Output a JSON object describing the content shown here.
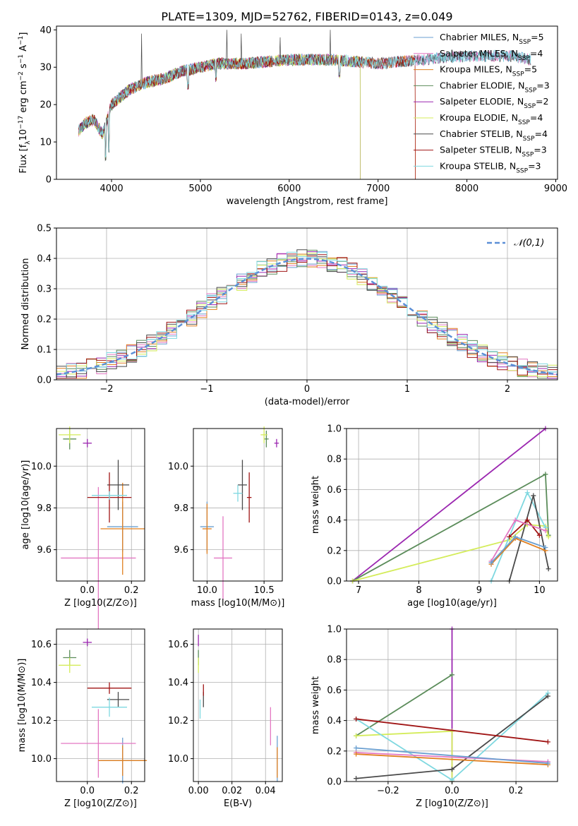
{
  "title": "PLATE=1309, MJD=52762, FIBERID=0143, z=0.049",
  "colors": {
    "c0": "#6a9fd0",
    "c1": "#e377c2",
    "c2": "#e07f1f",
    "c3": "#5b8c5a",
    "c4": "#9b27b0",
    "c5": "#d4ec5a",
    "c6": "#4a4a4a",
    "c7": "#a01515",
    "c8": "#7fd8e0",
    "normal": "#5b8fd6"
  },
  "chart_data": [
    {
      "id": "spectrum",
      "type": "line",
      "xlabel": "wavelength [Angstrom, rest frame]",
      "ylabel_parts": [
        "Flux [f",
        "λ",
        "10",
        "−17",
        " erg cm",
        "−2",
        " s",
        "−1",
        " A",
        "−1",
        "]"
      ],
      "xlim": [
        3380,
        9020
      ],
      "ylim": [
        0,
        41
      ],
      "xticks": [
        4000,
        5000,
        6000,
        7000,
        8000,
        9000
      ],
      "yticks": [
        0,
        10,
        20,
        30,
        40
      ],
      "legend_position": "right",
      "series": [
        {
          "name": "Chabrier MILES",
          "nssp": "5",
          "color": "c0",
          "end": 8720
        },
        {
          "name": "Salpeter MILES",
          "nssp": "4",
          "color": "c1",
          "end": 8720
        },
        {
          "name": "Kroupa MILES",
          "nssp": "5",
          "color": "c2",
          "end": 7420
        },
        {
          "name": "Chabrier ELODIE",
          "nssp": "3",
          "color": "c3",
          "end": 6800
        },
        {
          "name": "Salpeter ELODIE",
          "nssp": "2",
          "color": "c4",
          "end": 6800
        },
        {
          "name": "Kroupa ELODIE",
          "nssp": "4",
          "color": "c5",
          "end": 6800
        },
        {
          "name": "Chabrier STELIB",
          "nssp": "4",
          "color": "c6",
          "end": 8720
        },
        {
          "name": "Salpeter STELIB",
          "nssp": "3",
          "color": "c7",
          "end": 7420
        },
        {
          "name": "Kroupa STELIB",
          "nssp": "3",
          "color": "c8",
          "end": 8720
        }
      ],
      "data_start": 3630,
      "continuum": [
        [
          3630,
          13
        ],
        [
          3700,
          15
        ],
        [
          3800,
          16
        ],
        [
          3900,
          12
        ],
        [
          4000,
          20
        ],
        [
          4100,
          22
        ],
        [
          4200,
          24
        ],
        [
          4400,
          26
        ],
        [
          4600,
          27
        ],
        [
          4800,
          29
        ],
        [
          5000,
          30
        ],
        [
          5200,
          31
        ],
        [
          5500,
          31
        ],
        [
          6000,
          32
        ],
        [
          6500,
          32
        ],
        [
          7000,
          31
        ],
        [
          7500,
          32
        ],
        [
          8000,
          33
        ],
        [
          8500,
          33
        ],
        [
          8720,
          32
        ]
      ],
      "spikes": [
        [
          4340,
          39
        ],
        [
          5300,
          40
        ],
        [
          5460,
          39
        ],
        [
          6460,
          40
        ],
        [
          5900,
          38
        ]
      ],
      "dips": [
        [
          3934,
          5
        ],
        [
          3968,
          7
        ],
        [
          4861,
          24
        ],
        [
          5175,
          26
        ],
        [
          6563,
          27
        ]
      ]
    },
    {
      "id": "residuals",
      "type": "histogram",
      "xlabel": "(data-model)/error",
      "ylabel": "Normed distribution",
      "xlim": [
        -2.5,
        2.5
      ],
      "ylim": [
        0,
        0.5
      ],
      "xticks": [
        -2,
        -1,
        0,
        1,
        2
      ],
      "yticks": [
        0.0,
        0.1,
        0.2,
        0.3,
        0.4,
        0.5
      ],
      "bin_width": 0.1,
      "series_colors": [
        "c0",
        "c1",
        "c2",
        "c3",
        "c4",
        "c5",
        "c6",
        "c7",
        "c8"
      ],
      "legend": {
        "label": "𝒩(0,1)",
        "color": "normal",
        "position": "top-right"
      }
    },
    {
      "id": "age_vs_z",
      "type": "scatter",
      "xlabel": "Z [log10(Z/Z⊙)]",
      "ylabel": "age [log10(age/yr)]",
      "xlim": [
        -0.14,
        0.26
      ],
      "ylim": [
        9.45,
        10.18
      ],
      "xticks": [
        0.0,
        0.2
      ],
      "yticks": [
        9.6,
        9.8,
        10.0
      ],
      "points": [
        {
          "color": "c0",
          "x": 0.16,
          "y": 9.71,
          "xe": 0.07,
          "ye": 0.12
        },
        {
          "color": "c1",
          "x": 0.05,
          "y": 9.56,
          "xe": 0.17,
          "ye": 0.34
        },
        {
          "color": "c2",
          "x": 0.16,
          "y": 9.7,
          "xe": 0.1,
          "ye": 0.22
        },
        {
          "color": "c3",
          "x": -0.08,
          "y": 10.13,
          "xe": 0.03,
          "ye": 0.05
        },
        {
          "color": "c4",
          "x": 0.0,
          "y": 10.11,
          "xe": 0.02,
          "ye": 0.02
        },
        {
          "color": "c5",
          "x": -0.08,
          "y": 10.15,
          "xe": 0.05,
          "ye": 0.04
        },
        {
          "color": "c6",
          "x": 0.14,
          "y": 9.91,
          "xe": 0.05,
          "ye": 0.12
        },
        {
          "color": "c7",
          "x": 0.1,
          "y": 9.85,
          "xe": 0.1,
          "ye": 0.12
        },
        {
          "color": "c8",
          "x": 0.1,
          "y": 9.86,
          "xe": 0.08,
          "ye": 0.02
        }
      ]
    },
    {
      "id": "age_vs_mass",
      "type": "scatter",
      "xlabel": "mass [log10(M/M⊙)]",
      "ylabel": "",
      "xlim": [
        9.88,
        10.66
      ],
      "ylim": [
        9.45,
        10.18
      ],
      "xticks": [
        10.0,
        10.5
      ],
      "yticks": [
        9.6,
        9.8,
        10.0
      ],
      "points": [
        {
          "color": "c0",
          "x": 10.0,
          "y": 9.71,
          "xe": 0.06,
          "ye": 0.12
        },
        {
          "color": "c1",
          "x": 10.14,
          "y": 9.56,
          "xe": 0.08,
          "ye": 0.2
        },
        {
          "color": "c2",
          "x": 10.0,
          "y": 9.7,
          "xe": 0.04,
          "ye": 0.12
        },
        {
          "color": "c3",
          "x": 10.52,
          "y": 10.13,
          "xe": 0.02,
          "ye": 0.04
        },
        {
          "color": "c4",
          "x": 10.61,
          "y": 10.11,
          "xe": 0.02,
          "ye": 0.02
        },
        {
          "color": "c5",
          "x": 10.5,
          "y": 10.15,
          "xe": 0.03,
          "ye": 0.04
        },
        {
          "color": "c6",
          "x": 10.31,
          "y": 9.91,
          "xe": 0.04,
          "ye": 0.12
        },
        {
          "color": "c7",
          "x": 10.37,
          "y": 9.85,
          "xe": 0.02,
          "ye": 0.12
        },
        {
          "color": "c8",
          "x": 10.27,
          "y": 9.87,
          "xe": 0.04,
          "ye": 0.04
        }
      ]
    },
    {
      "id": "mass_weight_vs_age",
      "type": "line",
      "xlabel": "age [log10(age/yr)]",
      "ylabel": "mass weight",
      "xlim": [
        6.8,
        10.3
      ],
      "ylim": [
        0,
        1.0
      ],
      "xticks": [
        7,
        8,
        9,
        10
      ],
      "yticks": [
        0.0,
        0.2,
        0.4,
        0.6,
        0.8,
        1.0
      ],
      "series": [
        {
          "color": "c4",
          "points": [
            [
              6.9,
              0
            ],
            [
              10.1,
              1.0
            ]
          ]
        },
        {
          "color": "c3",
          "points": [
            [
              6.9,
              0
            ],
            [
              10.1,
              0.7
            ],
            [
              10.15,
              0.3
            ]
          ]
        },
        {
          "color": "c5",
          "points": [
            [
              6.9,
              0
            ],
            [
              9.5,
              0.27
            ],
            [
              9.8,
              0.37
            ],
            [
              10.1,
              0.36
            ],
            [
              10.15,
              0.29
            ]
          ]
        },
        {
          "color": "c8",
          "points": [
            [
              9.2,
              0
            ],
            [
              9.8,
              0.58
            ],
            [
              10.1,
              0.35
            ]
          ]
        },
        {
          "color": "c6",
          "points": [
            [
              9.5,
              0
            ],
            [
              9.9,
              0.56
            ],
            [
              10.15,
              0.08
            ]
          ]
        },
        {
          "color": "c7",
          "points": [
            [
              9.5,
              0.29
            ],
            [
              9.8,
              0.4
            ],
            [
              10.0,
              0.3
            ]
          ]
        },
        {
          "color": "c1",
          "points": [
            [
              9.2,
              0.13
            ],
            [
              9.6,
              0.4
            ],
            [
              10.1,
              0.33
            ]
          ]
        },
        {
          "color": "c2",
          "points": [
            [
              9.2,
              0.11
            ],
            [
              9.6,
              0.28
            ],
            [
              10.1,
              0.2
            ]
          ]
        },
        {
          "color": "c0",
          "points": [
            [
              9.2,
              0.12
            ],
            [
              9.6,
              0.29
            ],
            [
              10.1,
              0.22
            ]
          ]
        }
      ]
    },
    {
      "id": "mass_vs_z",
      "type": "scatter",
      "xlabel": "Z [log10(Z/Z⊙)]",
      "ylabel": "mass [log10(M/M⊙)]",
      "xlim": [
        -0.14,
        0.26
      ],
      "ylim": [
        9.88,
        10.68
      ],
      "xticks": [
        0.0,
        0.2
      ],
      "yticks": [
        10.0,
        10.2,
        10.4,
        10.6
      ],
      "points": [
        {
          "color": "c0",
          "x": 0.16,
          "y": 9.99,
          "xe": 0.1,
          "ye": 0.12
        },
        {
          "color": "c1",
          "x": 0.05,
          "y": 10.08,
          "xe": 0.17,
          "ye": 0.18
        },
        {
          "color": "c2",
          "x": 0.16,
          "y": 9.99,
          "xe": 0.11,
          "ye": 0.08
        },
        {
          "color": "c3",
          "x": -0.08,
          "y": 10.53,
          "xe": 0.03,
          "ye": 0.04
        },
        {
          "color": "c4",
          "x": 0.0,
          "y": 10.61,
          "xe": 0.02,
          "ye": 0.02
        },
        {
          "color": "c5",
          "x": -0.08,
          "y": 10.49,
          "xe": 0.05,
          "ye": 0.04
        },
        {
          "color": "c6",
          "x": 0.14,
          "y": 10.31,
          "xe": 0.05,
          "ye": 0.04
        },
        {
          "color": "c7",
          "x": 0.1,
          "y": 10.37,
          "xe": 0.1,
          "ye": 0.03
        },
        {
          "color": "c8",
          "x": 0.1,
          "y": 10.27,
          "xe": 0.08,
          "ye": 0.05
        }
      ]
    },
    {
      "id": "mass_vs_ebv",
      "type": "scatter",
      "xlabel": "E(B-V)",
      "ylabel": "",
      "xlim": [
        -0.003,
        0.05
      ],
      "ylim": [
        9.88,
        10.68
      ],
      "xticks": [
        0.0,
        0.02,
        0.04
      ],
      "yticks": [
        10.0,
        10.2,
        10.4,
        10.6
      ],
      "points": [
        {
          "color": "c0",
          "x": 0.047,
          "y": 10.0,
          "xe": 0.0,
          "ye": 0.12
        },
        {
          "color": "c1",
          "x": 0.043,
          "y": 10.17,
          "xe": 0.0,
          "ye": 0.1
        },
        {
          "color": "c2",
          "x": 0.047,
          "y": 9.98,
          "xe": 0.0,
          "ye": 0.08
        },
        {
          "color": "c3",
          "x": 0.0,
          "y": 10.53,
          "xe": 0.0,
          "ye": 0.04
        },
        {
          "color": "c4",
          "x": 0.0,
          "y": 10.62,
          "xe": 0.0,
          "ye": 0.03
        },
        {
          "color": "c5",
          "x": 0.0,
          "y": 10.49,
          "xe": 0.0,
          "ye": 0.04
        },
        {
          "color": "c6",
          "x": 0.003,
          "y": 10.31,
          "xe": 0.0,
          "ye": 0.04
        },
        {
          "color": "c7",
          "x": 0.003,
          "y": 10.36,
          "xe": 0.0,
          "ye": 0.03
        },
        {
          "color": "c8",
          "x": 0.001,
          "y": 10.26,
          "xe": 0.0,
          "ye": 0.05
        }
      ]
    },
    {
      "id": "mass_weight_vs_z",
      "type": "line",
      "xlabel": "Z [log10(Z/Z⊙)]",
      "ylabel": "mass weight",
      "xlim": [
        -0.33,
        0.33
      ],
      "ylim": [
        0,
        1.0
      ],
      "xticks": [
        -0.2,
        0.0,
        0.2
      ],
      "yticks": [
        0.0,
        0.2,
        0.4,
        0.6,
        0.8,
        1.0
      ],
      "series": [
        {
          "color": "c4",
          "points": [
            [
              0.0,
              0.0
            ],
            [
              0.0,
              1.0
            ]
          ]
        },
        {
          "color": "c3",
          "points": [
            [
              -0.3,
              0.3
            ],
            [
              0.0,
              0.7
            ]
          ]
        },
        {
          "color": "c5",
          "points": [
            [
              -0.3,
              0.3
            ],
            [
              0.0,
              0.33
            ],
            [
              0.0,
              0.0
            ]
          ]
        },
        {
          "color": "c8",
          "points": [
            [
              -0.3,
              0.41
            ],
            [
              0.0,
              0.01
            ],
            [
              0.3,
              0.58
            ]
          ]
        },
        {
          "color": "c6",
          "points": [
            [
              -0.3,
              0.02
            ],
            [
              0.0,
              0.08
            ],
            [
              0.3,
              0.56
            ]
          ]
        },
        {
          "color": "c7",
          "points": [
            [
              -0.3,
              0.41
            ],
            [
              0.3,
              0.26
            ]
          ]
        },
        {
          "color": "c1",
          "points": [
            [
              -0.3,
              0.19
            ],
            [
              0.3,
              0.13
            ]
          ]
        },
        {
          "color": "c2",
          "points": [
            [
              -0.3,
              0.18
            ],
            [
              0.3,
              0.11
            ]
          ]
        },
        {
          "color": "c0",
          "points": [
            [
              -0.3,
              0.22
            ],
            [
              0.3,
              0.12
            ]
          ]
        }
      ]
    }
  ]
}
